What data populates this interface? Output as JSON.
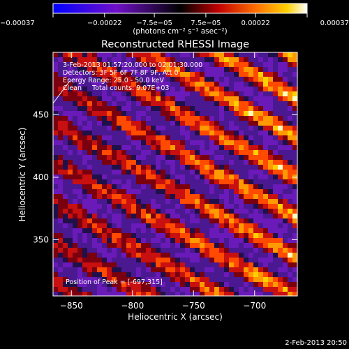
{
  "colorbar": {
    "tick_labels": [
      "−0.00037",
      "−0.00022",
      "−7.5e−05",
      "7.5e−05",
      "0.00022",
      "0.00037"
    ],
    "tick_values": [
      -0.00037,
      -0.00022,
      -7.5e-05,
      7.5e-05,
      0.00022,
      0.00037
    ],
    "range": [
      -0.00037,
      0.00037
    ],
    "unit_label": "(photons cm⁻² s⁻¹ asec⁻²)"
  },
  "chart_data": {
    "type": "heatmap",
    "title": "Reconstructed RHESSI Image",
    "xlabel": "Heliocentric X (arcsec)",
    "ylabel": "Heliocentric Y (arcsec)",
    "xlim": [
      -865,
      -665
    ],
    "ylim": [
      305,
      500
    ],
    "x_ticks": [
      -850,
      -800,
      -750,
      -700
    ],
    "x_tick_labels": [
      "−850",
      "−800",
      "−750",
      "−700"
    ],
    "y_ticks": [
      350,
      400,
      450
    ],
    "y_tick_labels": [
      "350",
      "400",
      "450"
    ],
    "pattern": "diagonal streaks of positive flux rising toward the upper right, brightest near the right side",
    "peak_x": -697,
    "peak_y": 315,
    "annotations": [
      "3-Feb-2013 01:57:20.000 to 02:01:30.000",
      "Detectors: 3F 5F 6F 7F 8F 9F, Att 0",
      "Energy Range: 25.0 - 50.0 keV",
      "Clean     Total counts: 9.07E+03"
    ],
    "peak_label": "Position of Peak = [-697,315]"
  },
  "footer": {
    "timestamp": "2-Feb-2013 20:50"
  }
}
